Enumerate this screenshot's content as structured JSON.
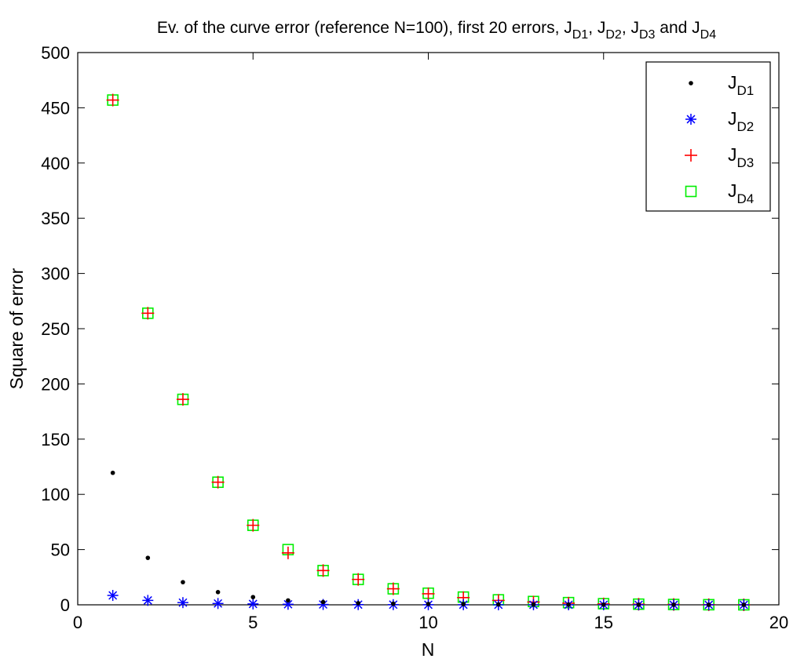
{
  "chart_data": {
    "type": "scatter",
    "title": {
      "prefix": "Ev. of the curve error (reference N=100), first 20 errors, ",
      "symbol": "J",
      "parts": [
        {
          "sub": "D1",
          "after": ", "
        },
        {
          "sub": "D2",
          "after": ", "
        },
        {
          "sub": "D3",
          "after": " and "
        },
        {
          "sub": "D4",
          "after": ""
        }
      ]
    },
    "xlabel": "N",
    "ylabel": "Square of error",
    "xlim": [
      0,
      20
    ],
    "ylim": [
      0,
      500
    ],
    "xticks": [
      0,
      5,
      10,
      15,
      20
    ],
    "yticks": [
      0,
      50,
      100,
      150,
      200,
      250,
      300,
      350,
      400,
      450,
      500
    ],
    "grid": false,
    "legend_position": "top-right",
    "x": [
      1,
      2,
      3,
      4,
      5,
      6,
      7,
      8,
      9,
      10,
      11,
      12,
      13,
      14,
      15,
      16,
      17,
      18,
      19
    ],
    "series": [
      {
        "name_symbol": "J",
        "name_sub": "D1",
        "marker": "dot",
        "color": "#000000",
        "values": [
          119.5,
          42.5,
          20.5,
          11.5,
          7,
          4,
          2.5,
          1.5,
          1,
          0.8,
          0.6,
          0.4,
          0.3,
          0.2,
          0.15,
          0.1,
          0.05,
          0.02,
          0
        ]
      },
      {
        "name_symbol": "J",
        "name_sub": "D2",
        "marker": "asterisk",
        "color": "#0000ff",
        "values": [
          8.5,
          4,
          2,
          1.2,
          0.8,
          0.5,
          0.3,
          0.2,
          0.15,
          0.1,
          0.08,
          0.06,
          0.05,
          0.04,
          0.03,
          0.02,
          0.01,
          0.01,
          0
        ]
      },
      {
        "name_symbol": "J",
        "name_sub": "D3",
        "marker": "plus",
        "color": "#ff0000",
        "values": [
          457,
          264,
          186,
          111,
          72,
          47,
          31,
          23,
          14.5,
          10,
          6.5,
          4,
          2.5,
          1.5,
          0.8,
          0.5,
          0.3,
          0.1,
          0
        ]
      },
      {
        "name_symbol": "J",
        "name_sub": "D4",
        "marker": "square",
        "color": "#00ee00",
        "values": [
          457,
          264,
          186,
          111,
          72,
          50,
          31,
          23,
          14.5,
          10.5,
          7,
          4.5,
          3,
          2,
          1,
          0.6,
          0.3,
          0.1,
          0
        ]
      }
    ]
  }
}
